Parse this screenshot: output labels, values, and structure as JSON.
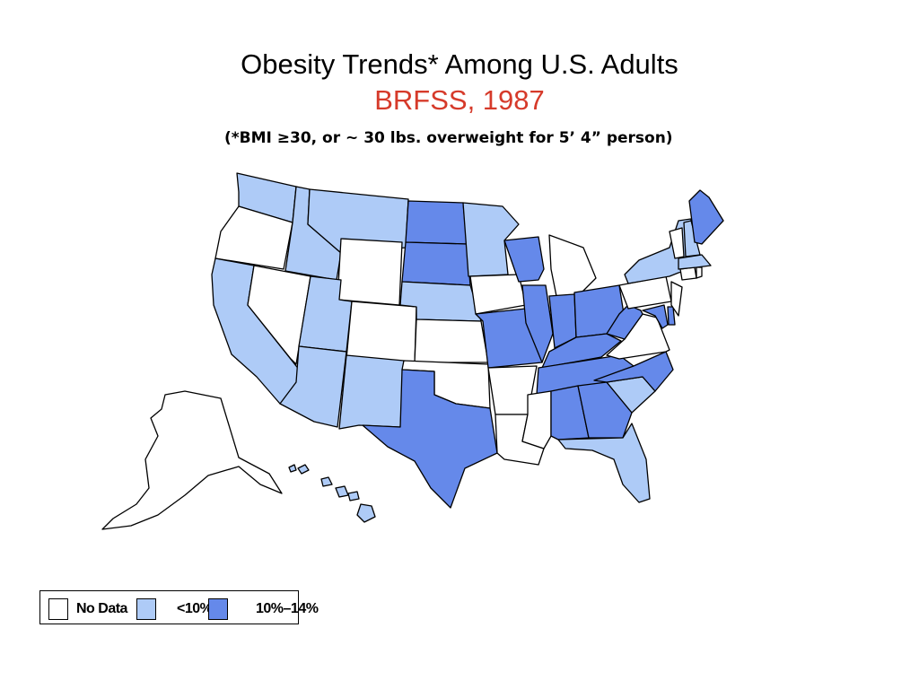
{
  "title": "Obesity Trends* Among U.S. Adults",
  "subtitle": "BRFSS, 1987",
  "note": "(*BMI ≥30, or ~ 30 lbs. overweight for 5’ 4” person)",
  "colors": {
    "title": "#000000",
    "subtitle": "#d63a2a",
    "no_data": "#ffffff",
    "lt10": "#aecbf7",
    "p10_14": "#6589ea"
  },
  "legend": {
    "items": [
      {
        "label": "No Data",
        "category": "no_data"
      },
      {
        "label": "<10%",
        "category": "lt10"
      },
      {
        "label": "10%–14%",
        "category": "p10_14"
      }
    ]
  },
  "states": {
    "WA": "lt10",
    "OR": "no_data",
    "CA": "lt10",
    "NV": "no_data",
    "ID": "lt10",
    "MT": "lt10",
    "WY": "no_data",
    "UT": "lt10",
    "CO": "no_data",
    "AZ": "lt10",
    "NM": "lt10",
    "ND": "p10_14",
    "SD": "p10_14",
    "NE": "lt10",
    "KS": "no_data",
    "OK": "no_data",
    "TX": "p10_14",
    "MN": "lt10",
    "IA": "no_data",
    "MO": "p10_14",
    "AR": "no_data",
    "LA": "no_data",
    "WI": "p10_14",
    "IL": "p10_14",
    "MS": "no_data",
    "MI": "no_data",
    "IN": "p10_14",
    "OH": "p10_14",
    "KY": "p10_14",
    "TN": "p10_14",
    "AL": "p10_14",
    "GA": "p10_14",
    "FL": "lt10",
    "SC": "lt10",
    "NC": "p10_14",
    "VA": "no_data",
    "WV": "p10_14",
    "MD": "p10_14",
    "DE": "p10_14",
    "PA": "no_data",
    "NJ": "no_data",
    "NY": "lt10",
    "CT": "no_data",
    "RI": "no_data",
    "MA": "lt10",
    "VT": "no_data",
    "NH": "lt10",
    "ME": "p10_14",
    "AK": "no_data",
    "HI": "lt10"
  }
}
